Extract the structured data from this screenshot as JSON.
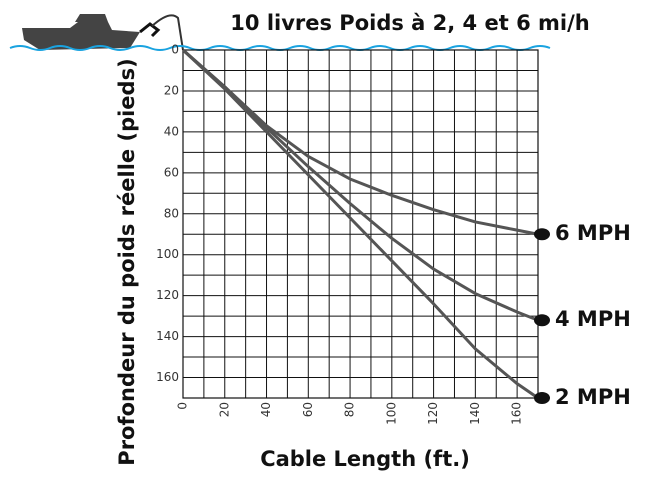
{
  "chart_data": {
    "type": "line",
    "title": "10 livres Poids à 2, 4 et 6 mi/h",
    "x_label": "Cable Length (ft.)",
    "y_label": "Profondeur du poids réelle (pieds)",
    "x": [
      0,
      20,
      40,
      60,
      80,
      100,
      120,
      140,
      160,
      170
    ],
    "series": [
      {
        "name": "6 MPH",
        "color": "#555555",
        "values": [
          0,
          18,
          37,
          52,
          63,
          71,
          78,
          84,
          88,
          90
        ]
      },
      {
        "name": "4 MPH",
        "color": "#555555",
        "values": [
          0,
          18,
          38,
          57,
          75,
          92,
          107,
          119,
          128,
          132
        ]
      },
      {
        "name": "2 MPH",
        "color": "#555555",
        "values": [
          0,
          19,
          40,
          61,
          82,
          103,
          124,
          146,
          163,
          170
        ]
      }
    ],
    "xlim": [
      0,
      170
    ],
    "ylim": [
      0,
      170
    ],
    "y_inverted": true,
    "xticks": [
      0,
      20,
      40,
      60,
      80,
      100,
      120,
      140,
      160
    ],
    "yticks": [
      0,
      20,
      40,
      60,
      80,
      100,
      120,
      140,
      160
    ],
    "minor_xticks": [
      10,
      30,
      50,
      70,
      90,
      110,
      130,
      150,
      170
    ],
    "minor_yticks": [
      10,
      30,
      50,
      70,
      90,
      110,
      130,
      150,
      170
    ],
    "grid": true
  }
}
